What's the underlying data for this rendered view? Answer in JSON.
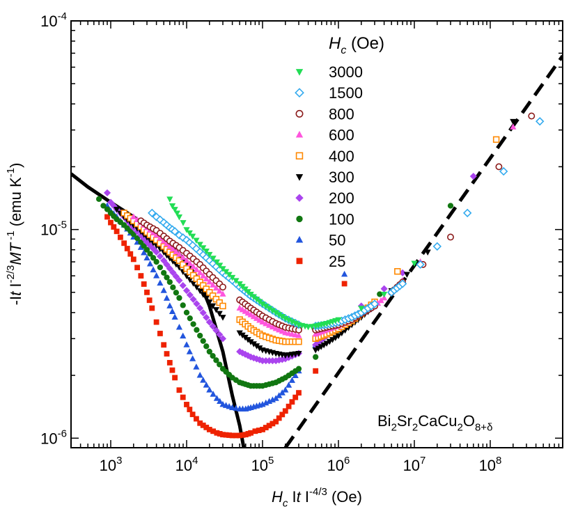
{
  "chart_data": {
    "type": "scatter",
    "xscale": "log",
    "yscale": "log",
    "xlim": [
      300,
      900000000
    ],
    "ylim": [
      9e-07,
      0.0001
    ],
    "x_ticks": [
      "10^3",
      "10^4",
      "10^5",
      "10^6",
      "10^7",
      "10^8"
    ],
    "y_ticks": [
      "10^-4",
      "10^-5",
      "10^-6"
    ],
    "x_tick_values": [
      1000,
      10000,
      100000,
      1000000,
      10000000,
      100000000
    ],
    "y_tick_values": [
      0.0001,
      1e-05,
      1e-06
    ],
    "xlabel_parts": [
      {
        "text": "H",
        "style": "italic",
        "shift": "none"
      },
      {
        "text": "c",
        "style": "italic",
        "shift": "sub"
      },
      {
        "text": " I",
        "style": "normal",
        "shift": "none"
      },
      {
        "text": "t",
        "style": "italic",
        "shift": "none"
      },
      {
        "text": " I",
        "style": "normal",
        "shift": "none"
      },
      {
        "text": "-4/3",
        "style": "normal",
        "shift": "sup"
      },
      {
        "text": " (Oe)",
        "style": "normal",
        "shift": "none"
      }
    ],
    "ylabel_parts": [
      {
        "text": "-I",
        "style": "normal",
        "shift": "none"
      },
      {
        "text": "t",
        "style": "italic",
        "shift": "none"
      },
      {
        "text": " I",
        "style": "normal",
        "shift": "none"
      },
      {
        "text": "-2/3",
        "style": "normal",
        "shift": "sup"
      },
      {
        "text": "MT",
        "style": "italic",
        "shift": "none"
      },
      {
        "text": " -1",
        "style": "normal",
        "shift": "sup"
      },
      {
        "text": " (emu K",
        "style": "normal",
        "shift": "none"
      },
      {
        "text": "-1",
        "style": "normal",
        "shift": "sup"
      },
      {
        "text": ")",
        "style": "normal",
        "shift": "none"
      }
    ],
    "legend": {
      "placement": "top-center",
      "title_parts": [
        {
          "text": "H",
          "style": "italic",
          "shift": "none"
        },
        {
          "text": "c",
          "style": "italic",
          "shift": "sub"
        },
        {
          "text": " (Oe)",
          "style": "normal",
          "shift": "none"
        }
      ]
    },
    "annotation_parts": [
      {
        "text": "Bi",
        "shift": "none"
      },
      {
        "text": "2",
        "shift": "sub"
      },
      {
        "text": "Sr",
        "shift": "none"
      },
      {
        "text": "2",
        "shift": "sub"
      },
      {
        "text": "CaCu",
        "shift": "none"
      },
      {
        "text": "2",
        "shift": "sub"
      },
      {
        "text": "O",
        "shift": "none"
      },
      {
        "text": "8+δ",
        "shift": "sub"
      }
    ],
    "series": [
      {
        "name": "3000",
        "marker": "triangle-down",
        "filled": true,
        "color": "#22dd55",
        "x": [
          6000,
          6500,
          7000,
          7500,
          8000,
          9000,
          10000,
          12000,
          15000,
          20000,
          25000,
          30000,
          40000,
          50000,
          70000,
          100000,
          150000,
          200000,
          300000,
          400000,
          500000,
          700000,
          1000000,
          2000000,
          4000000,
          10000000
        ],
        "y": [
          1.4e-05,
          1.3e-05,
          1.25e-05,
          1.2e-05,
          1.15e-05,
          1.08e-05,
          1e-05,
          9.3e-06,
          8.5e-06,
          7.6e-06,
          7e-06,
          6.5e-06,
          5.9e-06,
          5.5e-06,
          4.9e-06,
          4.4e-06,
          4e-06,
          3.75e-06,
          3.5e-06,
          3.42e-06,
          3.45e-06,
          3.55e-06,
          3.7e-06,
          4.2e-06,
          4.9e-06,
          6.9e-06
        ]
      },
      {
        "name": "1500",
        "marker": "diamond",
        "filled": false,
        "color": "#33aaee",
        "x": [
          3500,
          4000,
          5000,
          6000,
          7000,
          8000,
          10000,
          12000,
          15000,
          20000,
          30000,
          40000,
          50000,
          70000,
          100000,
          150000,
          200000,
          300000,
          500000,
          700000,
          1000000,
          1500000,
          2000000,
          3000000,
          5000000,
          7000000,
          12000000,
          20000000,
          50000000,
          150000000,
          450000000
        ],
        "y": [
          1.2e-05,
          1.15e-05,
          1.08e-05,
          1.02e-05,
          9.8e-06,
          9.4e-06,
          8.9e-06,
          8.4e-06,
          7.8e-06,
          7.1e-06,
          6.2e-06,
          5.7e-06,
          5.3e-06,
          4.8e-06,
          4.4e-06,
          4e-06,
          3.75e-06,
          3.5e-06,
          3.45e-06,
          3.5e-06,
          3.6e-06,
          3.8e-06,
          4e-06,
          4.4e-06,
          5e-06,
          5.5e-06,
          6.8e-06,
          8.3e-06,
          1.2e-05,
          1.9e-05,
          3.3e-05
        ]
      },
      {
        "name": "800",
        "marker": "circle",
        "filled": false,
        "color": "#8b1a1a",
        "x": [
          2500,
          3000,
          4000,
          5000,
          6000,
          8000,
          10000,
          15000,
          20000,
          30000,
          50000,
          70000,
          100000,
          150000,
          200000,
          300000,
          500000,
          700000,
          1000000,
          1500000,
          2000000,
          3000000,
          5000000,
          7000000,
          13000000,
          30000000,
          130000000,
          350000000
        ],
        "y": [
          1.1e-05,
          1.05e-05,
          9.9e-06,
          9.3e-06,
          8.8e-06,
          8.2e-06,
          7.7e-06,
          6.8e-06,
          6.1e-06,
          5.3e-06,
          4.6e-06,
          4.2e-06,
          3.85e-06,
          3.55e-06,
          3.4e-06,
          3.3e-06,
          3.3e-06,
          3.4e-06,
          3.5e-06,
          3.7e-06,
          3.95e-06,
          4.3e-06,
          5e-06,
          5.6e-06,
          6.8e-06,
          9.2e-06,
          2e-05,
          3.5e-05
        ]
      },
      {
        "name": "600",
        "marker": "triangle-up",
        "filled": true,
        "color": "#ff55dd",
        "x": [
          2000,
          2500,
          3000,
          4000,
          5000,
          6000,
          8000,
          10000,
          15000,
          20000,
          30000,
          50000,
          70000,
          100000,
          150000,
          200000,
          300000,
          500000,
          700000,
          1000000,
          1500000,
          2000000,
          3000000,
          4000000,
          7000000,
          12000000,
          200000000
        ],
        "y": [
          1.15e-05,
          1.08e-05,
          1.02e-05,
          9.4e-06,
          8.8e-06,
          8.3e-06,
          7.6e-06,
          7.1e-06,
          6.2e-06,
          5.6e-06,
          4.9e-06,
          4.2e-06,
          3.9e-06,
          3.6e-06,
          3.35e-06,
          3.2e-06,
          3.1e-06,
          3.15e-06,
          3.3e-06,
          3.45e-06,
          3.7e-06,
          3.95e-06,
          4.3e-06,
          4.7e-06,
          5.7e-06,
          7e-06,
          3.1e-05
        ]
      },
      {
        "name": "400",
        "marker": "square",
        "filled": false,
        "color": "#ff8800",
        "x": [
          1500,
          2000,
          2500,
          3000,
          4000,
          5000,
          6000,
          8000,
          10000,
          15000,
          20000,
          30000,
          50000,
          70000,
          100000,
          150000,
          200000,
          300000,
          500000,
          700000,
          1000000,
          1500000,
          2000000,
          3000000,
          6000000,
          120000000
        ],
        "y": [
          1.2e-05,
          1.1e-05,
          1.03e-05,
          9.7e-06,
          8.9e-06,
          8.3e-06,
          7.8e-06,
          7.1e-06,
          6.5e-06,
          5.6e-06,
          5e-06,
          4.3e-06,
          3.7e-06,
          3.35e-06,
          3.1e-06,
          2.95e-06,
          2.9e-06,
          2.9e-06,
          3e-06,
          3.15e-06,
          3.35e-06,
          3.65e-06,
          3.95e-06,
          4.5e-06,
          6.3e-06,
          2.7e-05
        ]
      },
      {
        "name": "300",
        "marker": "triangle-down",
        "filled": true,
        "color": "#000000",
        "x": [
          1200,
          1500,
          2000,
          2500,
          3000,
          4000,
          5000,
          6000,
          8000,
          10000,
          15000,
          20000,
          30000,
          50000,
          70000,
          100000,
          150000,
          200000,
          300000,
          500000,
          700000,
          1000000,
          1500000,
          2000000,
          3000000,
          5000000,
          8000000,
          15000000,
          200000000
        ],
        "y": [
          1.25e-05,
          1.15e-05,
          1.05e-05,
          9.8e-06,
          9.2e-06,
          8.4e-06,
          7.8e-06,
          7.3e-06,
          6.6e-06,
          6e-06,
          5.1e-06,
          4.5e-06,
          3.8e-06,
          3.2e-06,
          2.9e-06,
          2.65e-06,
          2.55e-06,
          2.5e-06,
          2.55e-06,
          2.65e-06,
          2.85e-06,
          3.1e-06,
          3.5e-06,
          3.8e-06,
          4.3e-06,
          5.1e-06,
          6.1e-06,
          7.8e-06,
          3.3e-05
        ]
      },
      {
        "name": "200",
        "marker": "diamond",
        "filled": true,
        "color": "#aa44ee",
        "x": [
          900,
          1000,
          1200,
          1500,
          2000,
          2500,
          3000,
          4000,
          5000,
          6000,
          8000,
          10000,
          15000,
          20000,
          30000,
          50000,
          70000,
          100000,
          150000,
          200000,
          300000,
          500000,
          700000,
          1000000,
          2000000,
          4000000,
          7000000,
          60000000
        ],
        "y": [
          1.5e-05,
          1.35e-05,
          1.25e-05,
          1.15e-05,
          1.02e-05,
          9.4e-06,
          8.7e-06,
          7.8e-06,
          7.1e-06,
          6.5e-06,
          5.7e-06,
          5.1e-06,
          4.2e-06,
          3.6e-06,
          3e-06,
          2.6e-06,
          2.45e-06,
          2.35e-06,
          2.35e-06,
          2.4e-06,
          2.55e-06,
          2.8e-06,
          3.1e-06,
          3.5e-06,
          4.3e-06,
          5.2e-06,
          6.2e-06,
          1.8e-05
        ]
      },
      {
        "name": "100",
        "marker": "circle",
        "filled": true,
        "color": "#117711",
        "x": [
          700,
          800,
          900,
          1000,
          1200,
          1500,
          2000,
          2500,
          3000,
          4000,
          5000,
          6000,
          8000,
          10000,
          15000,
          20000,
          30000,
          40000,
          50000,
          70000,
          100000,
          150000,
          200000,
          300000,
          500000,
          1000000,
          3500000,
          30000000
        ],
        "y": [
          1.4e-05,
          1.3e-05,
          1.25e-05,
          1.2e-05,
          1.12e-05,
          1.05e-05,
          9.5e-06,
          8.7e-06,
          8e-06,
          7e-06,
          6.2e-06,
          5.6e-06,
          4.7e-06,
          4e-06,
          3.1e-06,
          2.6e-06,
          2.15e-06,
          1.95e-06,
          1.85e-06,
          1.78e-06,
          1.78e-06,
          1.85e-06,
          1.95e-06,
          2.15e-06,
          2.45e-06,
          3.3e-06,
          4.9e-06,
          1.3e-05
        ]
      },
      {
        "name": "50",
        "marker": "triangle-up",
        "filled": true,
        "color": "#2255dd",
        "x": [
          900,
          1000,
          1200,
          1500,
          2000,
          2500,
          3000,
          4000,
          5000,
          6000,
          7000,
          8000,
          10000,
          12000,
          15000,
          20000,
          25000,
          30000,
          40000,
          50000,
          60000,
          70000,
          100000,
          150000,
          200000,
          300000,
          500000,
          1200000
        ],
        "y": [
          1.3e-05,
          1.23e-05,
          1.15e-05,
          1.05e-05,
          9.2e-06,
          8.2e-06,
          7.3e-06,
          6e-06,
          5.1e-06,
          4.3e-06,
          3.8e-06,
          3.4e-06,
          2.8e-06,
          2.4e-06,
          2e-06,
          1.7e-06,
          1.55e-06,
          1.45e-06,
          1.4e-06,
          1.38e-06,
          1.38e-06,
          1.4e-06,
          1.45e-06,
          1.55e-06,
          1.7e-06,
          2.1e-06,
          2.8e-06,
          6.1e-06
        ]
      },
      {
        "name": "25",
        "marker": "square",
        "filled": true,
        "color": "#ee2200",
        "x": [
          900,
          1000,
          1200,
          1500,
          2000,
          2500,
          3000,
          3500,
          4000,
          5000,
          6000,
          7000,
          8000,
          10000,
          12000,
          15000,
          20000,
          25000,
          30000,
          40000,
          50000,
          60000,
          70000,
          80000,
          100000,
          150000,
          200000,
          300000,
          500000,
          1200000
        ],
        "y": [
          1.15e-05,
          1.08e-05,
          9.8e-06,
          8.6e-06,
          7.2e-06,
          6e-06,
          5e-06,
          4.2e-06,
          3.6e-06,
          2.8e-06,
          2.3e-06,
          1.95e-06,
          1.7e-06,
          1.45e-06,
          1.3e-06,
          1.18e-06,
          1.1e-06,
          1.06e-06,
          1.04e-06,
          1.03e-06,
          1.03e-06,
          1.04e-06,
          1.06e-06,
          1.08e-06,
          1.1e-06,
          1.2e-06,
          1.35e-06,
          1.65e-06,
          2.1e-06,
          5.5e-06
        ]
      }
    ],
    "lines": [
      {
        "style": "solid",
        "color": "#000000",
        "x": [
          300,
          500,
          1000,
          2000,
          3000,
          5000,
          8000,
          10000,
          15000,
          20000,
          30000,
          40000,
          50000,
          60000
        ],
        "y": [
          1.85e-05,
          1.6e-05,
          1.35e-05,
          1.15e-05,
          1.03e-05,
          8.9e-06,
          7.6e-06,
          7e-06,
          5.6e-06,
          4.3e-06,
          2.6e-06,
          1.6e-06,
          1.15e-06,
          8e-07
        ]
      },
      {
        "style": "dashed",
        "color": "#000000",
        "x": [
          200000,
          900000000
        ],
        "y": [
          9e-07,
          6.8e-05
        ]
      }
    ]
  }
}
